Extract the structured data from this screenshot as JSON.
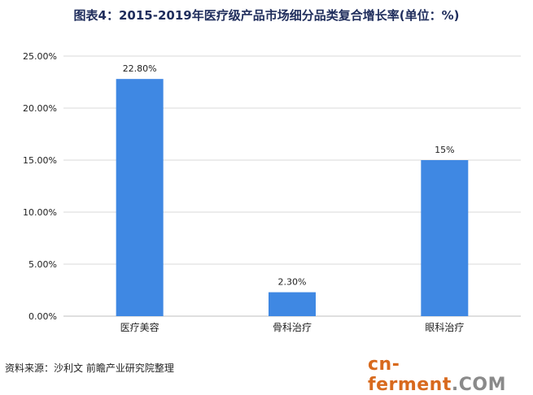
{
  "title": "图表4：2015-2019年医疗级产品市场细分品类复合增长率(单位：%)",
  "footer": "资料来源：沙利文 前瞻产业研究院整理",
  "watermark": {
    "part1": "cn-ferment",
    "part2": ".COM"
  },
  "colors": {
    "bar": "#3f88e3",
    "grid": "#d9d9d9",
    "axis": "#bfbfbf",
    "text": "#222222"
  },
  "chart_data": {
    "type": "bar",
    "categories": [
      "医疗美容",
      "骨科治疗",
      "眼科治疗"
    ],
    "values": [
      22.8,
      2.3,
      15
    ],
    "data_labels": [
      "22.80%",
      "2.30%",
      "15%"
    ],
    "y_ticks": [
      "0.00%",
      "5.00%",
      "10.00%",
      "15.00%",
      "20.00%",
      "25.00%"
    ],
    "ylim": [
      0,
      25
    ],
    "grid": true
  }
}
